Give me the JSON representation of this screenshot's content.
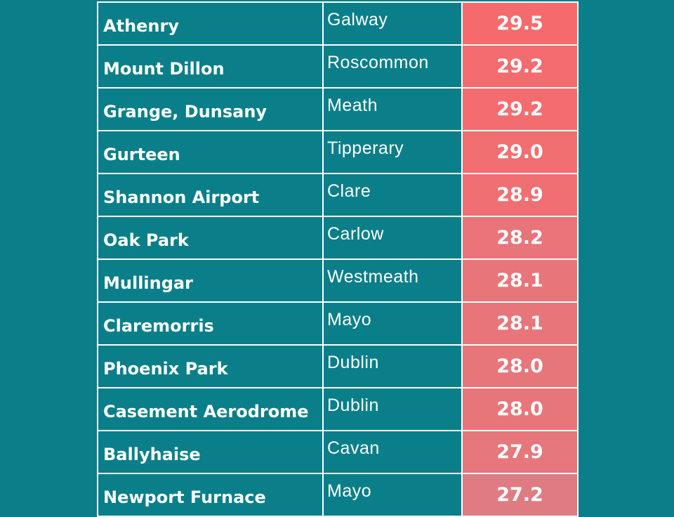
{
  "table": {
    "rows": [
      {
        "station": "Athenry",
        "county": "Galway",
        "value": "29.5",
        "color": "#f56b6d"
      },
      {
        "station": "Mount Dillon",
        "county": "Roscommon",
        "value": "29.2",
        "color": "#f36c6f"
      },
      {
        "station": "Grange, Dunsany",
        "county": "Meath",
        "value": "29.2",
        "color": "#f36c6f"
      },
      {
        "station": "Gurteen",
        "county": "Tipperary",
        "value": "29.0",
        "color": "#f16e71"
      },
      {
        "station": "Shannon Airport",
        "county": "Clare",
        "value": "28.9",
        "color": "#f06f72"
      },
      {
        "station": "Oak Park",
        "county": "Carlow",
        "value": "28.2",
        "color": "#e97479"
      },
      {
        "station": "Mullingar",
        "county": "Westmeath",
        "value": "28.1",
        "color": "#e8757a"
      },
      {
        "station": "Claremorris",
        "county": "Mayo",
        "value": "28.1",
        "color": "#e8757a"
      },
      {
        "station": "Phoenix Park",
        "county": "Dublin",
        "value": "28.0",
        "color": "#e7767b"
      },
      {
        "station": "Casement Aerodrome",
        "county": "Dublin",
        "value": "28.0",
        "color": "#e7767b"
      },
      {
        "station": "Ballyhaise",
        "county": "Cavan",
        "value": "27.9",
        "color": "#e6777c"
      },
      {
        "station": "Newport Furnace",
        "county": "Mayo",
        "value": "27.2",
        "color": "#df7c83"
      }
    ]
  }
}
